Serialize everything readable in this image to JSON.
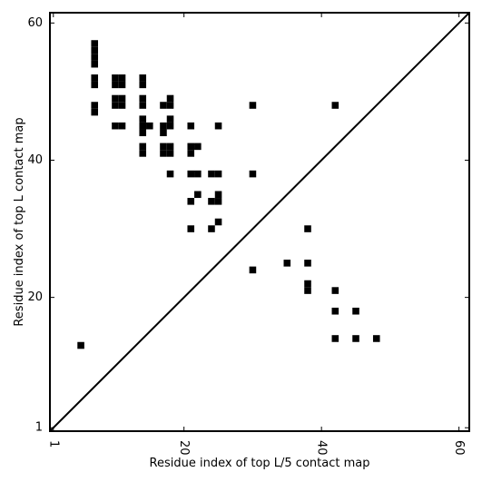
{
  "chart_data": {
    "type": "scatter",
    "marker": "square",
    "title": "",
    "xlabel": "Residue index of top L/5 contact map",
    "ylabel": "Residue index of top L contact map",
    "xlim": [
      0.5,
      61.5
    ],
    "ylim": [
      0.5,
      61.5
    ],
    "x_ticks": [
      1,
      20,
      40,
      60
    ],
    "y_ticks": [
      1,
      20,
      40,
      60
    ],
    "x_tick_labels": [
      "1",
      "20",
      "40",
      "60"
    ],
    "y_tick_labels": [
      "1",
      "20",
      "40",
      "60"
    ],
    "x_tick_rotation": -90,
    "grid": false,
    "diagonal_line": true,
    "point_color": "#000000",
    "points": [
      [
        7,
        57
      ],
      [
        7,
        56
      ],
      [
        7,
        55
      ],
      [
        7,
        54
      ],
      [
        7,
        52
      ],
      [
        7,
        51
      ],
      [
        7,
        48
      ],
      [
        7,
        47
      ],
      [
        10,
        52
      ],
      [
        11,
        52
      ],
      [
        10,
        51
      ],
      [
        11,
        51
      ],
      [
        10,
        49
      ],
      [
        11,
        49
      ],
      [
        10,
        48
      ],
      [
        11,
        48
      ],
      [
        10,
        45
      ],
      [
        11,
        45
      ],
      [
        14,
        52
      ],
      [
        14,
        51
      ],
      [
        14,
        49
      ],
      [
        14,
        48
      ],
      [
        14,
        46
      ],
      [
        14,
        45
      ],
      [
        15,
        45
      ],
      [
        14,
        44
      ],
      [
        14,
        42
      ],
      [
        14,
        41
      ],
      [
        17,
        48
      ],
      [
        18,
        49
      ],
      [
        18,
        48
      ],
      [
        17,
        45
      ],
      [
        18,
        46
      ],
      [
        18,
        45
      ],
      [
        17,
        44
      ],
      [
        17,
        42
      ],
      [
        18,
        42
      ],
      [
        17,
        41
      ],
      [
        18,
        41
      ],
      [
        18,
        38
      ],
      [
        21,
        45
      ],
      [
        25,
        45
      ],
      [
        21,
        42
      ],
      [
        22,
        42
      ],
      [
        21,
        41
      ],
      [
        21,
        38
      ],
      [
        22,
        38
      ],
      [
        24,
        38
      ],
      [
        25,
        38
      ],
      [
        22,
        35
      ],
      [
        25,
        35
      ],
      [
        21,
        34
      ],
      [
        24,
        34
      ],
      [
        25,
        34
      ],
      [
        25,
        31
      ],
      [
        21,
        30
      ],
      [
        24,
        30
      ],
      [
        30,
        48
      ],
      [
        42,
        48
      ],
      [
        30,
        38
      ],
      [
        38,
        30
      ],
      [
        35,
        25
      ],
      [
        38,
        25
      ],
      [
        30,
        24
      ],
      [
        38,
        22
      ],
      [
        38,
        21
      ],
      [
        42,
        21
      ],
      [
        42,
        18
      ],
      [
        45,
        18
      ],
      [
        42,
        14
      ],
      [
        45,
        14
      ],
      [
        48,
        14
      ],
      [
        5,
        13
      ]
    ]
  }
}
